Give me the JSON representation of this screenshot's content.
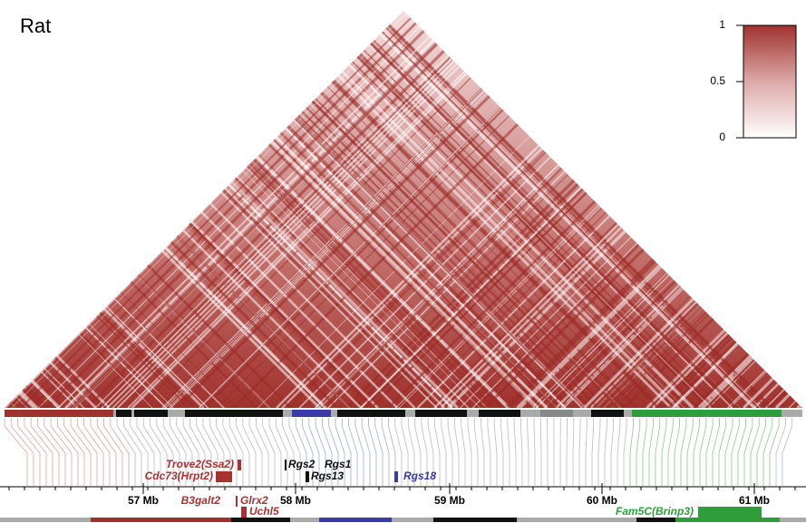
{
  "title": "Rat",
  "legend": {
    "ticks": [
      1,
      0.5,
      0
    ]
  },
  "axis": {
    "ticks": [
      "57 Mb",
      "58 Mb",
      "59 Mb",
      "60 Mb",
      "61 Mb"
    ]
  },
  "genes": [
    {
      "label": "Trove2(Ssa2)",
      "color": "#a83232"
    },
    {
      "label": "Cdc73(Hrpt2)",
      "color": "#a83232"
    },
    {
      "label": "Rgs2",
      "color": "#111111"
    },
    {
      "label": "Rgs1",
      "color": "#111111"
    },
    {
      "label": "Rgs13",
      "color": "#111111"
    },
    {
      "label": "Rgs18",
      "color": "#3a3aa8"
    },
    {
      "label": "B3galt2",
      "color": "#a83232"
    },
    {
      "label": "Glrx2",
      "color": "#a83232"
    },
    {
      "label": "Uchl5",
      "color": "#a83232"
    },
    {
      "label": "Fam5C(Brinp3)",
      "color": "#2e9e3a"
    }
  ]
}
